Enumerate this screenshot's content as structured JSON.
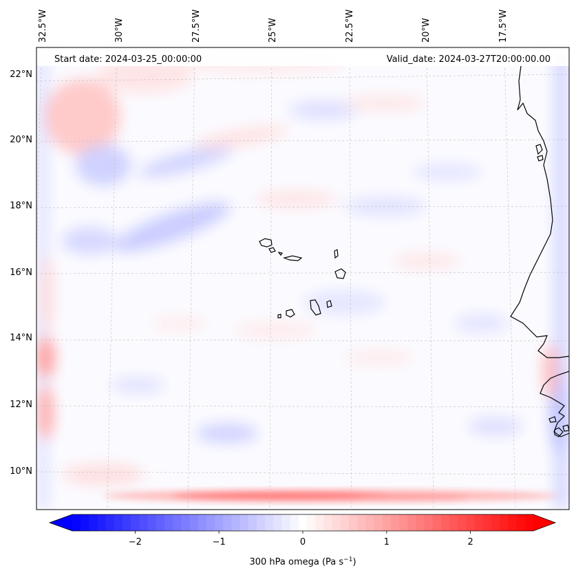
{
  "map": {
    "start_label": "Start date: 2024-03-25_00:00:00",
    "valid_label": "Valid_date: 2024-03-27T20:00:00.00",
    "lon_labels": [
      "32.5°W",
      "30°W",
      "27.5°W",
      "25°W",
      "22.5°W",
      "20°W",
      "17.5°W"
    ],
    "lat_labels": [
      "22°N",
      "20°N",
      "18°N",
      "16°N",
      "14°N",
      "12°N",
      "10°N"
    ],
    "gridlines": true,
    "coastline_color": "#000000"
  },
  "colorbar": {
    "label_text": "300 hPa omega (Pa s",
    "label_sup": "−1",
    "label_close": ")",
    "tick_labels": [
      "−2",
      "−1",
      "0",
      "1",
      "2"
    ],
    "range": [
      -2.75,
      2.75
    ],
    "extend": "both",
    "colormap": "bwr",
    "min_color": "#0000ff",
    "mid_color": "#ffffff",
    "max_color": "#ff0000"
  }
}
